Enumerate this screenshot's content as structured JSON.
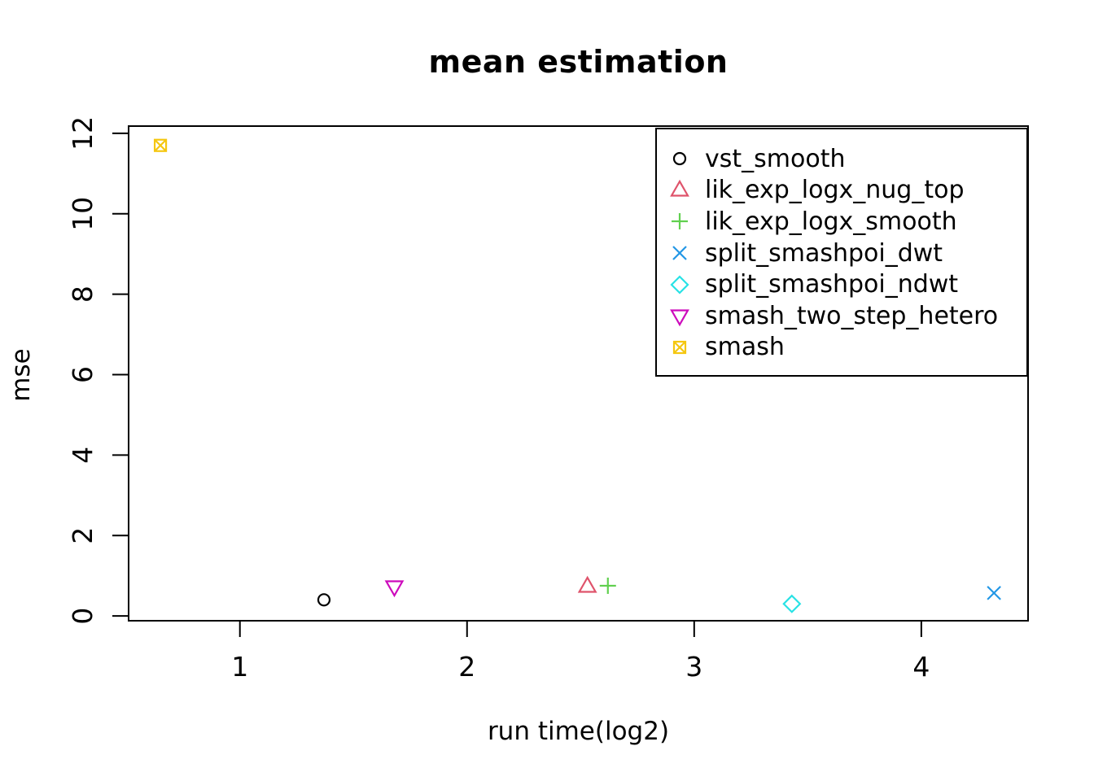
{
  "chart_data": {
    "type": "scatter",
    "title": "mean estimation",
    "xlabel": "run time(log2)",
    "ylabel": "mse",
    "xlim": [
      0.51,
      4.47
    ],
    "ylim": [
      -0.12,
      12.18
    ],
    "x_ticks": [
      1,
      2,
      3,
      4
    ],
    "y_ticks": [
      0,
      2,
      4,
      6,
      8,
      10,
      12
    ],
    "grid": false,
    "legend_position": "top-right-inside",
    "axis_color": "#000000",
    "background_color": "#ffffff",
    "series": [
      {
        "name": "vst_smooth",
        "marker": "open-circle",
        "color": "#000000",
        "points": [
          {
            "x": 1.37,
            "y": 0.4
          }
        ]
      },
      {
        "name": "lik_exp_logx_nug_top",
        "marker": "triangle-up",
        "color": "#DF536B",
        "points": [
          {
            "x": 2.53,
            "y": 0.73
          }
        ]
      },
      {
        "name": "lik_exp_logx_smooth",
        "marker": "plus",
        "color": "#61D04F",
        "points": [
          {
            "x": 2.62,
            "y": 0.75
          }
        ]
      },
      {
        "name": "split_smashpoi_dwt",
        "marker": "x",
        "color": "#2297E6",
        "points": [
          {
            "x": 4.32,
            "y": 0.57
          }
        ]
      },
      {
        "name": "split_smashpoi_ndwt",
        "marker": "diamond",
        "color": "#28E2E5",
        "points": [
          {
            "x": 3.43,
            "y": 0.3
          }
        ]
      },
      {
        "name": "smash_two_step_hetero",
        "marker": "triangle-down",
        "color": "#CD0BBC",
        "points": [
          {
            "x": 1.68,
            "y": 0.73
          }
        ]
      },
      {
        "name": "smash",
        "marker": "square-x",
        "color": "#F5C710",
        "points": [
          {
            "x": 0.65,
            "y": 11.7
          }
        ]
      }
    ]
  }
}
